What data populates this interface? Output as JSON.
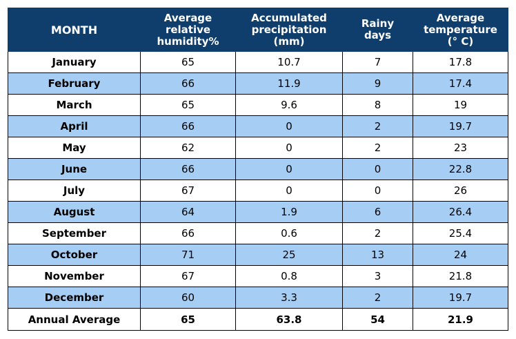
{
  "chart_data": {
    "type": "table",
    "columns": [
      "MONTH",
      "Average relative humidity%",
      "Accumulated precipitation (mm)",
      "Rainy days",
      "Average temperature (° C)"
    ],
    "header": {
      "month": "MONTH",
      "humidity_lines": [
        "Average",
        "relative",
        "humidity%"
      ],
      "precip_lines": [
        "Accumulated",
        "precipitation",
        "(mm)"
      ],
      "rainy_lines": [
        "Rainy",
        "days"
      ],
      "temp_lines": [
        "Average",
        "temperature",
        "(° C)"
      ]
    },
    "rows": [
      {
        "month": "January",
        "humidity": "65",
        "precipitation": "10.7",
        "rainy_days": "7",
        "temperature": "17.8"
      },
      {
        "month": "February",
        "humidity": "66",
        "precipitation": "11.9",
        "rainy_days": "9",
        "temperature": "17.4"
      },
      {
        "month": "March",
        "humidity": "65",
        "precipitation": "9.6",
        "rainy_days": "8",
        "temperature": "19"
      },
      {
        "month": "April",
        "humidity": "66",
        "precipitation": "0",
        "rainy_days": "2",
        "temperature": "19.7"
      },
      {
        "month": "May",
        "humidity": "62",
        "precipitation": "0",
        "rainy_days": "2",
        "temperature": "23"
      },
      {
        "month": "June",
        "humidity": "66",
        "precipitation": "0",
        "rainy_days": "0",
        "temperature": "22.8"
      },
      {
        "month": "July",
        "humidity": "67",
        "precipitation": "0",
        "rainy_days": "0",
        "temperature": "26"
      },
      {
        "month": "August",
        "humidity": "64",
        "precipitation": "1.9",
        "rainy_days": "6",
        "temperature": "26.4"
      },
      {
        "month": "September",
        "humidity": "66",
        "precipitation": "0.6",
        "rainy_days": "2",
        "temperature": "25.4"
      },
      {
        "month": "October",
        "humidity": "71",
        "precipitation": "25",
        "rainy_days": "13",
        "temperature": "24"
      },
      {
        "month": "November",
        "humidity": "67",
        "precipitation": "0.8",
        "rainy_days": "3",
        "temperature": "21.8"
      },
      {
        "month": "December",
        "humidity": "60",
        "precipitation": "3.3",
        "rainy_days": "2",
        "temperature": "19.7"
      }
    ],
    "total": {
      "month": "Annual Average",
      "humidity": "65",
      "precipitation": "63.8",
      "rainy_days": "54",
      "temperature": "21.9"
    }
  },
  "colors": {
    "header_bg": "#0f3e6c",
    "header_text": "#ffffff",
    "alt_row": "#a6cef4",
    "row": "#ffffff"
  }
}
